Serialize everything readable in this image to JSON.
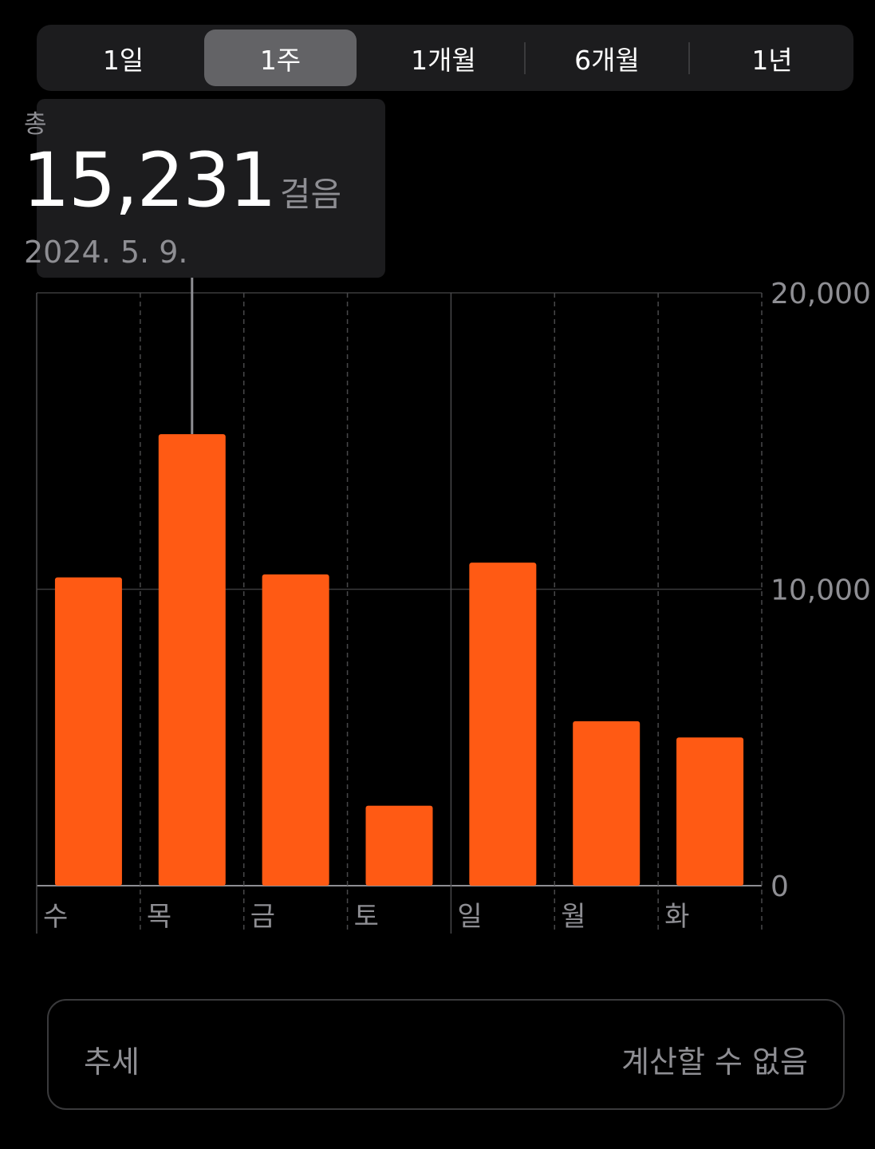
{
  "segments": [
    "1일",
    "1주",
    "1개월",
    "6개월",
    "1년"
  ],
  "active_segment": "1주",
  "tooltip": {
    "label": "총",
    "value": "15,231",
    "unit": "걸음",
    "date": "2024. 5. 9."
  },
  "trend": {
    "label": "추세",
    "value": "계산할 수 없음"
  },
  "colors": {
    "bar": "#ff5a14",
    "background": "#000000"
  },
  "chart_data": {
    "type": "bar",
    "categories": [
      "수",
      "목",
      "금",
      "토",
      "일",
      "월",
      "화"
    ],
    "values": [
      10400,
      15231,
      10500,
      2700,
      10900,
      5550,
      5000
    ],
    "ylim": [
      0,
      20000
    ],
    "yticks": [
      "0",
      "10,000",
      "20,000"
    ],
    "highlighted_index": 1,
    "grid": true
  }
}
